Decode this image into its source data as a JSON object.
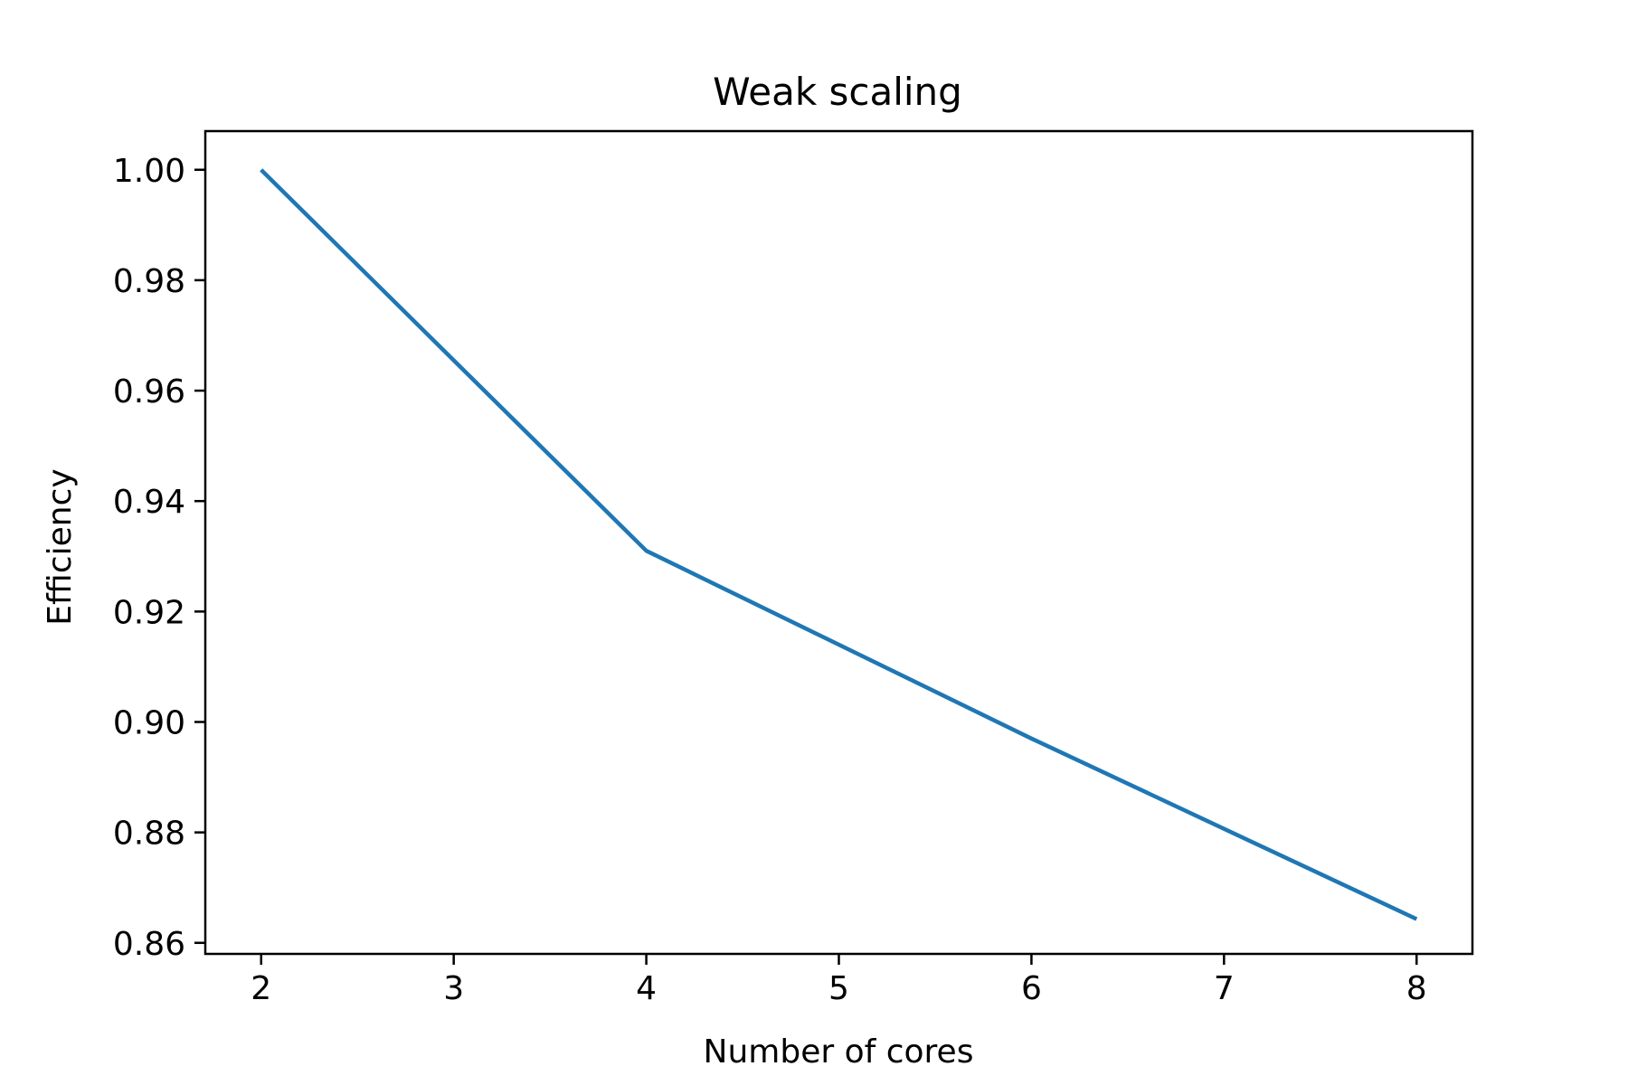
{
  "chart_data": {
    "type": "line",
    "title": "Weak scaling",
    "xlabel": "Number of cores",
    "ylabel": "Efficiency",
    "xlim": [
      1.71,
      8.29
    ],
    "ylim": [
      0.858,
      1.007
    ],
    "xticks": [
      2,
      3,
      4,
      5,
      6,
      7,
      8
    ],
    "yticks": [
      1.0,
      0.98,
      0.96,
      0.94,
      0.92,
      0.9,
      0.88,
      0.86
    ],
    "ytick_labels": [
      "1.00",
      "0.98",
      "0.96",
      "0.94",
      "0.92",
      "0.90",
      "0.88",
      "0.86"
    ],
    "grid": false,
    "series": [
      {
        "color": "#1f77b4",
        "x": [
          2,
          4,
          6,
          8
        ],
        "y": [
          1.0,
          0.931,
          0.897,
          0.8643
        ]
      }
    ]
  }
}
